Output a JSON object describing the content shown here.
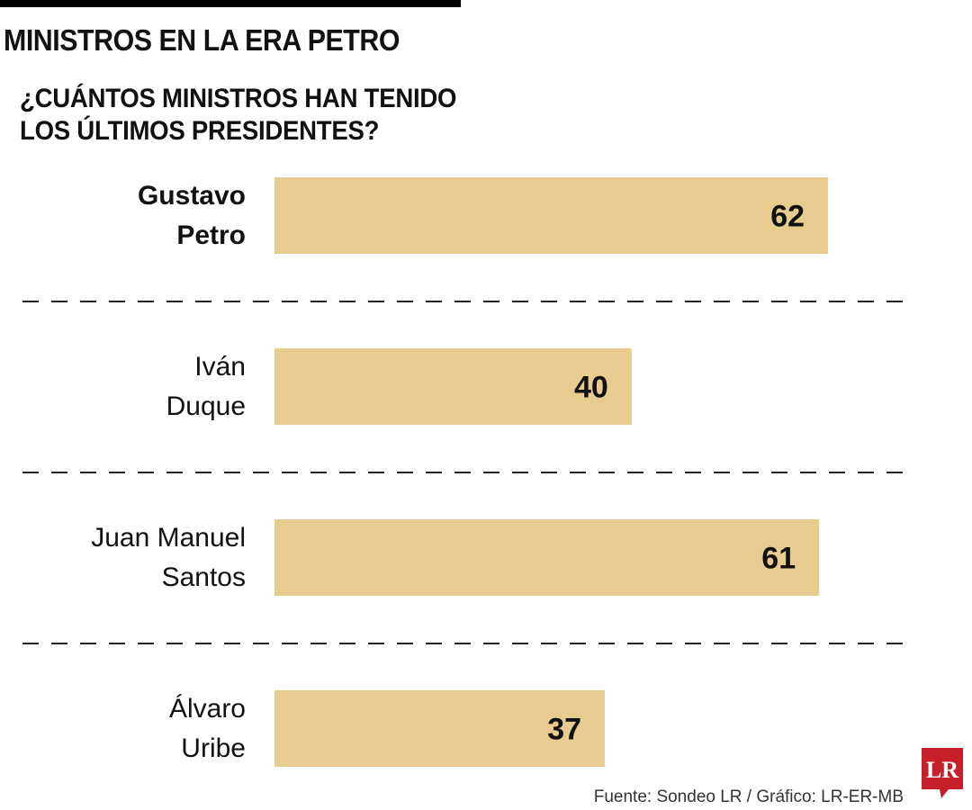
{
  "chart_data": {
    "type": "bar",
    "orientation": "horizontal",
    "title": "MINISTROS EN LA ERA PETRO",
    "subtitle": "¿CUÁNTOS MINISTROS HAN TENIDO LOS ÚLTIMOS PRESIDENTES?",
    "categories": [
      [
        "Gustavo",
        "Petro"
      ],
      [
        "Iván",
        "Duque"
      ],
      [
        "Juan Manuel",
        "Santos"
      ],
      [
        "Álvaro",
        "Uribe"
      ]
    ],
    "values": [
      62,
      40,
      61,
      37
    ],
    "highlight_index": 0,
    "bar_color": "#E8CB8E",
    "grid": false,
    "separators": "dashed",
    "source": "Fuente: Sondeo LR / Gráfico: LR-ER-MB"
  },
  "logo": {
    "text": "LR",
    "color": "#C8202A"
  }
}
